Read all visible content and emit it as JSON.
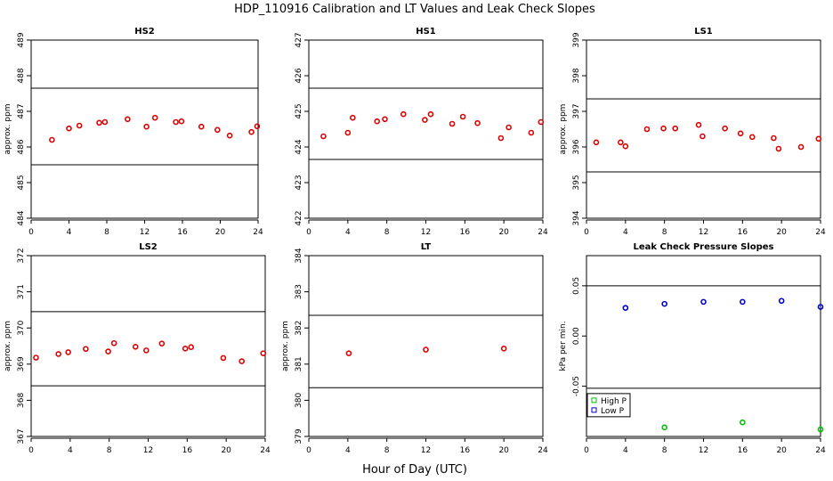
{
  "main_title": "HDP_110916  Calibration and LT Values and Leak Check Slopes",
  "x_axis_label": "Hour of Day (UTC)",
  "chart_data": [
    {
      "id": "hs2",
      "type": "scatter",
      "title": "HS2",
      "ylabel": "approx. ppm",
      "xlim": [
        0,
        24
      ],
      "ylim": [
        484,
        489
      ],
      "xticks": [
        0,
        4,
        8,
        12,
        16,
        20,
        24
      ],
      "yticks": [
        484,
        485,
        486,
        487,
        488,
        489
      ],
      "hlines": [
        487.65,
        485.5
      ],
      "grid": false,
      "series": [
        {
          "name": "points",
          "color": "#e00000",
          "x": [
            2.2,
            4.0,
            5.1,
            7.2,
            7.8,
            10.2,
            12.2,
            13.1,
            15.3,
            15.9,
            18.0,
            19.7,
            21.0,
            23.3,
            23.9
          ],
          "y": [
            486.2,
            486.52,
            486.6,
            486.68,
            486.7,
            486.78,
            486.57,
            486.82,
            486.7,
            486.72,
            486.57,
            486.48,
            486.32,
            486.42,
            486.58
          ]
        }
      ]
    },
    {
      "id": "hs1",
      "type": "scatter",
      "title": "HS1",
      "ylabel": "",
      "xlim": [
        0,
        24
      ],
      "ylim": [
        422,
        427
      ],
      "xticks": [
        0,
        4,
        8,
        12,
        16,
        20,
        24
      ],
      "yticks": [
        422,
        423,
        424,
        425,
        426,
        427
      ],
      "hlines": [
        425.65,
        423.65
      ],
      "grid": false,
      "series": [
        {
          "name": "points",
          "color": "#e00000",
          "x": [
            1.5,
            4.0,
            4.5,
            7.0,
            7.8,
            9.7,
            11.9,
            12.5,
            14.7,
            15.8,
            17.3,
            19.7,
            20.5,
            22.8,
            23.8
          ],
          "y": [
            424.3,
            424.4,
            424.82,
            424.72,
            424.78,
            424.92,
            424.76,
            424.92,
            424.65,
            424.85,
            424.67,
            424.25,
            424.55,
            424.4,
            424.7
          ]
        }
      ]
    },
    {
      "id": "ls1",
      "type": "scatter",
      "title": "LS1",
      "ylabel": "approx. ppm",
      "xlim": [
        0,
        24
      ],
      "ylim": [
        394,
        399
      ],
      "xticks": [
        0,
        4,
        8,
        12,
        16,
        20,
        24
      ],
      "yticks": [
        394,
        395,
        396,
        397,
        398,
        399
      ],
      "hlines": [
        397.35,
        395.3
      ],
      "grid": false,
      "series": [
        {
          "name": "points",
          "color": "#e00000",
          "x": [
            1.0,
            3.5,
            4.0,
            6.2,
            7.9,
            9.1,
            11.5,
            11.9,
            14.2,
            15.8,
            17.0,
            19.2,
            19.7,
            22.0,
            23.8
          ],
          "y": [
            396.13,
            396.13,
            396.02,
            396.5,
            396.52,
            396.52,
            396.62,
            396.3,
            396.52,
            396.38,
            396.28,
            396.25,
            395.95,
            396.0,
            396.23
          ]
        }
      ]
    },
    {
      "id": "ls2",
      "type": "scatter",
      "title": "LS2",
      "ylabel": "approx. ppm",
      "xlim": [
        0,
        24
      ],
      "ylim": [
        367,
        372
      ],
      "xticks": [
        0,
        4,
        8,
        12,
        16,
        20,
        24
      ],
      "yticks": [
        367,
        368,
        369,
        370,
        371,
        372
      ],
      "hlines": [
        370.45,
        368.4
      ],
      "grid": false,
      "series": [
        {
          "name": "points",
          "color": "#e00000",
          "x": [
            0.5,
            2.8,
            3.8,
            5.6,
            7.9,
            8.5,
            10.7,
            11.8,
            13.4,
            15.8,
            16.4,
            19.7,
            21.6,
            23.8
          ],
          "y": [
            369.18,
            369.28,
            369.33,
            369.42,
            369.35,
            369.58,
            369.48,
            369.38,
            369.57,
            369.43,
            369.47,
            369.17,
            369.08,
            369.3
          ]
        }
      ]
    },
    {
      "id": "lt",
      "type": "scatter",
      "title": "LT",
      "ylabel": "approx. ppm",
      "xlim": [
        0,
        24
      ],
      "ylim": [
        379,
        384
      ],
      "xticks": [
        0,
        4,
        8,
        12,
        16,
        20,
        24
      ],
      "yticks": [
        379,
        380,
        381,
        382,
        383,
        384
      ],
      "hlines": [
        382.35,
        380.35
      ],
      "grid": false,
      "series": [
        {
          "name": "points",
          "color": "#e00000",
          "x": [
            4.1,
            12.0,
            20.0
          ],
          "y": [
            381.3,
            381.4,
            381.43
          ]
        }
      ]
    },
    {
      "id": "leak",
      "type": "scatter",
      "title": "Leak Check Pressure Slopes",
      "ylabel": "kPa per min.",
      "xlim": [
        0,
        24
      ],
      "ylim": [
        -0.1,
        0.08
      ],
      "xticks": [
        0,
        4,
        8,
        12,
        16,
        20,
        24
      ],
      "yticks": [
        -0.05,
        0.0,
        0.05
      ],
      "ytick_labels": [
        "-0.05",
        "0.00",
        "0.05"
      ],
      "hlines": [
        0.05,
        -0.052
      ],
      "grid": false,
      "legend_position": "bottom-left",
      "series": [
        {
          "name": "High P",
          "color": "#00c000",
          "x": [
            8,
            16,
            24
          ],
          "y": [
            -0.091,
            -0.086,
            -0.093
          ]
        },
        {
          "name": "Low P",
          "color": "#0000cc",
          "x": [
            4,
            8,
            12,
            16,
            20,
            24
          ],
          "y": [
            0.028,
            0.032,
            0.034,
            0.034,
            0.035,
            0.029
          ]
        }
      ]
    }
  ]
}
